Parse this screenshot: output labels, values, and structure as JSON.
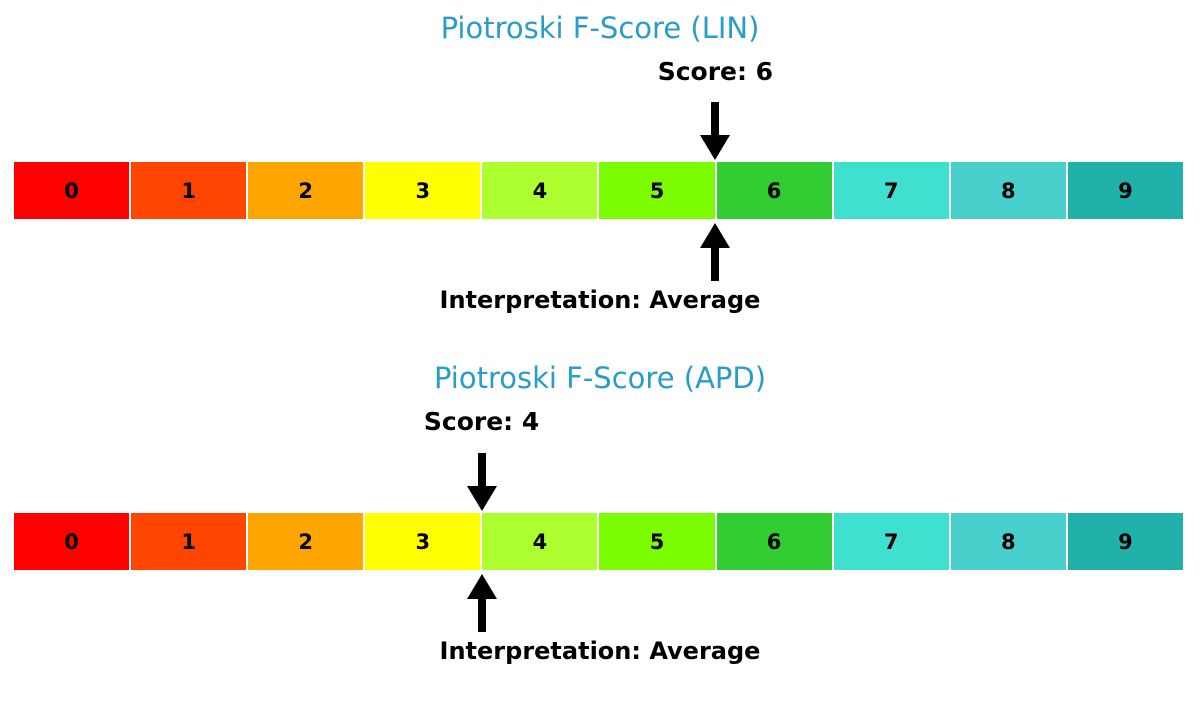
{
  "colors": {
    "background": "#ffffff",
    "title_text": "#299cca",
    "label_text": "#000000",
    "arrow": "#000000",
    "cell_divider": "#ffffff"
  },
  "scale": {
    "cells": [
      {
        "label": "0",
        "color": "#ff0000"
      },
      {
        "label": "1",
        "color": "#ff4500"
      },
      {
        "label": "2",
        "color": "#ffa500"
      },
      {
        "label": "3",
        "color": "#ffff00"
      },
      {
        "label": "4",
        "color": "#adff2f"
      },
      {
        "label": "5",
        "color": "#7cfc00"
      },
      {
        "label": "6",
        "color": "#32cd32"
      },
      {
        "label": "7",
        "color": "#40e0d0"
      },
      {
        "label": "8",
        "color": "#48d1cc"
      },
      {
        "label": "9",
        "color": "#20b2aa"
      }
    ]
  },
  "charts": [
    {
      "title": "Piotroski F-Score (LIN)",
      "score": 6,
      "score_label": "Score: 6",
      "interpretation_label": "Interpretation: Average"
    },
    {
      "title": "Piotroski F-Score (APD)",
      "score": 4,
      "score_label": "Score: 4",
      "interpretation_label": "Interpretation: Average"
    }
  ],
  "chart_data": [
    {
      "type": "gauge",
      "title": "Piotroski F-Score (LIN)",
      "ticker": "LIN",
      "score": 6,
      "interpretation": "Average",
      "scale_categories": [
        "0",
        "1",
        "2",
        "3",
        "4",
        "5",
        "6",
        "7",
        "8",
        "9"
      ],
      "scale_range": [
        0,
        9
      ],
      "annotations": [
        "Score: 6",
        "Interpretation: Average"
      ],
      "cell_colors": [
        "#ff0000",
        "#ff4500",
        "#ffa500",
        "#ffff00",
        "#adff2f",
        "#7cfc00",
        "#32cd32",
        "#40e0d0",
        "#48d1cc",
        "#20b2aa"
      ],
      "marker": "black arrows above and below the scale pointing at score position",
      "legend": "none",
      "grid": false
    },
    {
      "type": "gauge",
      "title": "Piotroski F-Score (APD)",
      "ticker": "APD",
      "score": 4,
      "interpretation": "Average",
      "scale_categories": [
        "0",
        "1",
        "2",
        "3",
        "4",
        "5",
        "6",
        "7",
        "8",
        "9"
      ],
      "scale_range": [
        0,
        9
      ],
      "annotations": [
        "Score: 4",
        "Interpretation: Average"
      ],
      "cell_colors": [
        "#ff0000",
        "#ff4500",
        "#ffa500",
        "#ffff00",
        "#adff2f",
        "#7cfc00",
        "#32cd32",
        "#40e0d0",
        "#48d1cc",
        "#20b2aa"
      ],
      "marker": "black arrows above and below the scale pointing at score position",
      "legend": "none",
      "grid": false
    }
  ]
}
